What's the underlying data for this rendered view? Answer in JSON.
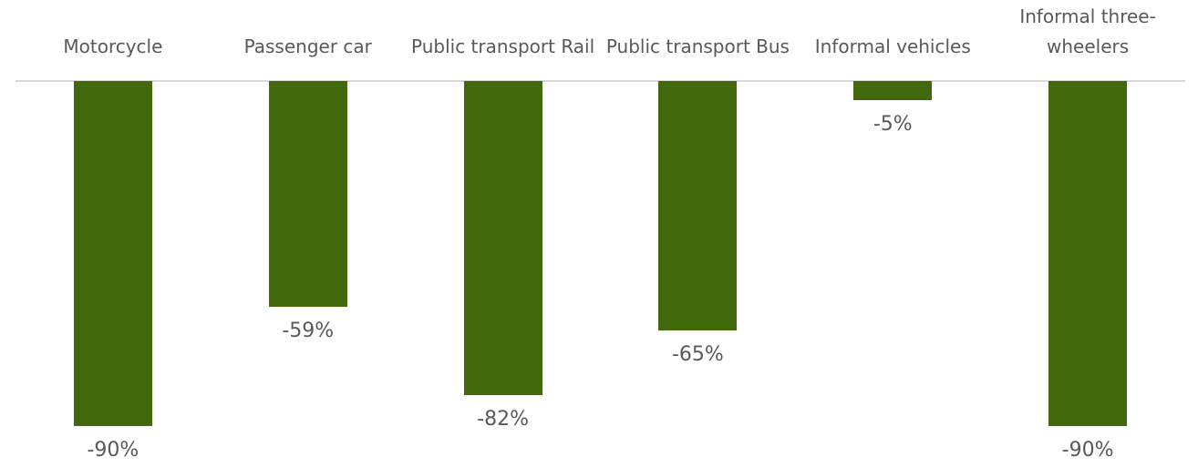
{
  "chart_data": {
    "type": "bar",
    "categories": [
      "Motorcycle",
      "Passenger car",
      "Public transport Rail",
      "Public transport Bus",
      "Informal vehicles",
      "Informal three-wheelers"
    ],
    "values": [
      -90,
      -59,
      -82,
      -65,
      -5,
      -90
    ],
    "value_labels": [
      "-90%",
      "-59%",
      "-82%",
      "-65%",
      "-5%",
      "-90%"
    ],
    "color": "#41690c",
    "ylim": [
      -90,
      0
    ]
  }
}
